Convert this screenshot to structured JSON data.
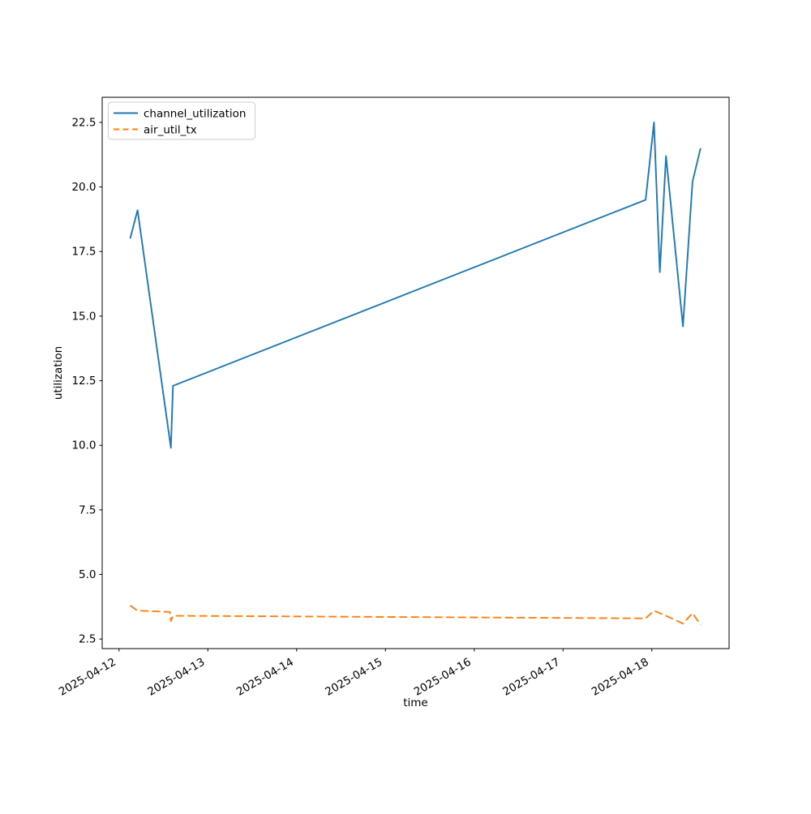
{
  "chart_data": {
    "type": "line",
    "title": "",
    "xlabel": "time",
    "ylabel": "utilization",
    "x_epoch": "2025-04-12",
    "x_tick_labels": [
      "2025-04-12",
      "2025-04-13",
      "2025-04-14",
      "2025-04-15",
      "2025-04-16",
      "2025-04-17",
      "2025-04-18"
    ],
    "xlim_days": [
      -0.19,
      6.87
    ],
    "y_ticks": [
      2.5,
      5.0,
      7.5,
      10.0,
      12.5,
      15.0,
      17.5,
      20.0,
      22.5
    ],
    "ylim": [
      2.13,
      23.47
    ],
    "grid": false,
    "legend_location": "upper left",
    "background_color": "#ffffff",
    "spine_color": "#000000",
    "series": [
      {
        "name": "channel_utilization",
        "color": "#1f77b4",
        "style": "solid",
        "points": [
          {
            "time": "2025-04-12 03:00",
            "value": 18.0
          },
          {
            "time": "2025-04-12 05:00",
            "value": 19.1
          },
          {
            "time": "2025-04-12 14:00",
            "value": 9.9
          },
          {
            "time": "2025-04-12 14:35",
            "value": 12.3
          },
          {
            "time": "2025-04-17 22:20",
            "value": 19.5
          },
          {
            "time": "2025-04-18 00:35",
            "value": 22.5
          },
          {
            "time": "2025-04-18 02:10",
            "value": 16.7
          },
          {
            "time": "2025-04-18 03:50",
            "value": 21.2
          },
          {
            "time": "2025-04-18 08:25",
            "value": 14.6
          },
          {
            "time": "2025-04-18 11:00",
            "value": 20.2
          },
          {
            "time": "2025-04-18 13:10",
            "value": 21.5
          }
        ]
      },
      {
        "name": "air_util_tx",
        "color": "#ff7f0e",
        "style": "dashed",
        "points": [
          {
            "time": "2025-04-12 03:00",
            "value": 3.8
          },
          {
            "time": "2025-04-12 05:00",
            "value": 3.6
          },
          {
            "time": "2025-04-12 13:45",
            "value": 3.55
          },
          {
            "time": "2025-04-12 14:00",
            "value": 3.2
          },
          {
            "time": "2025-04-12 14:35",
            "value": 3.4
          },
          {
            "time": "2025-04-17 22:20",
            "value": 3.3
          },
          {
            "time": "2025-04-18 00:35",
            "value": 3.6
          },
          {
            "time": "2025-04-18 02:10",
            "value": 3.5
          },
          {
            "time": "2025-04-18 03:50",
            "value": 3.4
          },
          {
            "time": "2025-04-18 08:25",
            "value": 3.1
          },
          {
            "time": "2025-04-18 11:00",
            "value": 3.5
          },
          {
            "time": "2025-04-18 13:10",
            "value": 3.05
          }
        ]
      }
    ]
  }
}
